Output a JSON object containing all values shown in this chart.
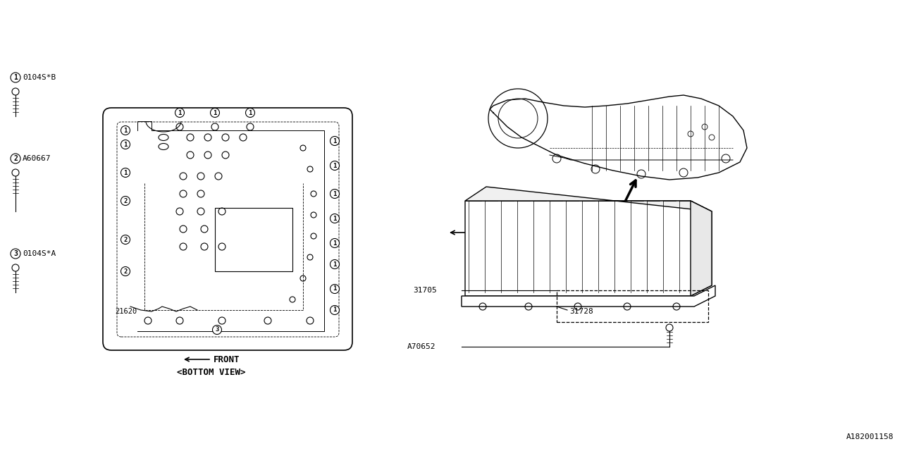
{
  "bg_color": "#ffffff",
  "line_color": "#000000",
  "diagram_id": "A182001158",
  "labels": {
    "part1": "0104S*B",
    "part2": "A60667",
    "part3": "0104S*A",
    "part4": "21620",
    "part5": "31705",
    "part6": "31728",
    "part7": "A70652",
    "bottom_view": "<BOTTOM VIEW>",
    "front": "FRONT"
  },
  "font_family": "monospace"
}
